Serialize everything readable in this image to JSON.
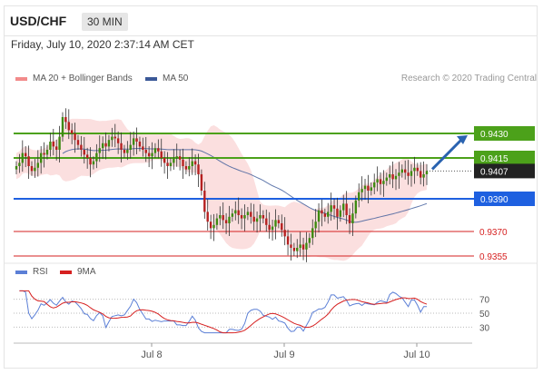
{
  "header": {
    "symbol": "USD/CHF",
    "timeframe": "30 MIN"
  },
  "datetime": "Friday, July 10, 2020 2:37:14 AM CET",
  "legend": {
    "ma20": {
      "label": "MA 20 + Bollinger Bands",
      "color": "#f28b8b"
    },
    "ma50": {
      "label": "MA 50",
      "color": "#3b5998"
    }
  },
  "credit": "Research © 2020 Trading Central",
  "rsi_legend": {
    "rsi": {
      "label": "RSI",
      "color": "#5b7fd6"
    },
    "ma9": {
      "label": "9MA",
      "color": "#d62020"
    }
  },
  "chart_data": {
    "type": "candlestick",
    "x_ticks": [
      "Jul 8",
      "Jul 9",
      "Jul 10"
    ],
    "y_range": [
      0.9345,
      0.945
    ],
    "price_levels": [
      {
        "value": 0.943,
        "label": "0.9430",
        "color": "#4ca11a",
        "kind": "resistance"
      },
      {
        "value": 0.9415,
        "label": "0.9415",
        "color": "#4ca11a",
        "kind": "resistance"
      },
      {
        "value": 0.9407,
        "label": "0.9407",
        "color": "#222222",
        "kind": "last-price"
      },
      {
        "value": 0.939,
        "label": "0.9390",
        "color": "#1e60e0",
        "kind": "pivot"
      },
      {
        "value": 0.937,
        "label": "0.9370",
        "color": "#d62020",
        "kind": "support"
      },
      {
        "value": 0.9355,
        "label": "0.9355",
        "color": "#d62020",
        "kind": "support"
      }
    ],
    "closes": [
      0.941,
      0.9412,
      0.9418,
      0.9416,
      0.941,
      0.9407,
      0.9409,
      0.9412,
      0.9418,
      0.9417,
      0.942,
      0.9425,
      0.9422,
      0.942,
      0.9428,
      0.944,
      0.9437,
      0.9432,
      0.943,
      0.9426,
      0.9423,
      0.942,
      0.9417,
      0.9415,
      0.9411,
      0.9413,
      0.9418,
      0.9421,
      0.9424,
      0.9422,
      0.9426,
      0.9428,
      0.9427,
      0.9424,
      0.942,
      0.9418,
      0.942,
      0.9423,
      0.9427,
      0.9425,
      0.9422,
      0.942,
      0.9418,
      0.9416,
      0.9418,
      0.9421,
      0.9419,
      0.9415,
      0.9412,
      0.941,
      0.9412,
      0.9415,
      0.9416,
      0.9414,
      0.941,
      0.9408,
      0.941,
      0.9413,
      0.9411,
      0.9405,
      0.9395,
      0.9382,
      0.9376,
      0.9372,
      0.9374,
      0.9378,
      0.938,
      0.9377,
      0.9375,
      0.9379,
      0.9381,
      0.9383,
      0.938,
      0.9378,
      0.938,
      0.9382,
      0.9379,
      0.9376,
      0.9378,
      0.938,
      0.9378,
      0.9374,
      0.9371,
      0.9373,
      0.9377,
      0.9375,
      0.9371,
      0.9367,
      0.9362,
      0.936,
      0.9358,
      0.936,
      0.9362,
      0.9359,
      0.9363,
      0.9366,
      0.9372,
      0.9376,
      0.9383,
      0.9381,
      0.9379,
      0.9382,
      0.9386,
      0.9384,
      0.9379,
      0.9383,
      0.9387,
      0.938,
      0.9375,
      0.9381,
      0.9389,
      0.9394,
      0.9396,
      0.9398,
      0.9395,
      0.9397,
      0.94,
      0.9402,
      0.9399,
      0.9401,
      0.9403,
      0.9405,
      0.9402,
      0.9404,
      0.9406,
      0.9408,
      0.9406,
      0.9404,
      0.9407,
      0.9409,
      0.9407,
      0.9403,
      0.9405,
      0.9407
    ],
    "rsi": {
      "ticks": [
        70,
        50,
        30
      ],
      "y_range": [
        15,
        85
      ]
    }
  }
}
